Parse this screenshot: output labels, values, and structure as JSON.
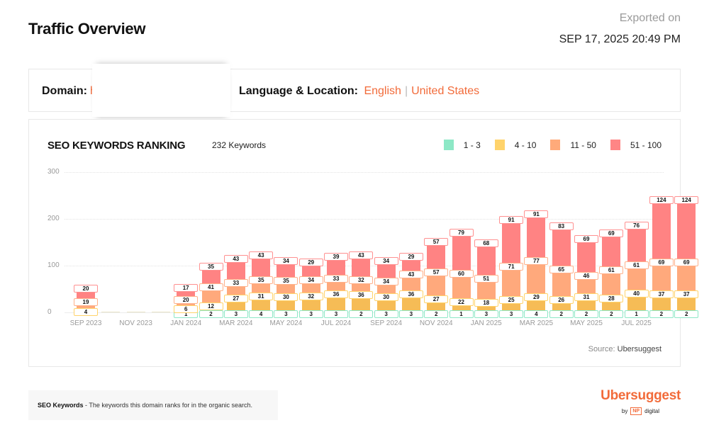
{
  "header": {
    "title": "Traffic Overview",
    "exported_label": "Exported on",
    "exported_date": "SEP 17, 2025 20:49 PM"
  },
  "info": {
    "domain_label": "Domain:",
    "domain_value": "h",
    "lang_label": "Language & Location:",
    "language": "English",
    "separator": "|",
    "location": "United States"
  },
  "chart_card": {
    "title": "SEO KEYWORDS RANKING",
    "count": "232 Keywords",
    "source_label": "Source:",
    "source_value": "Ubersuggest"
  },
  "legend": [
    {
      "label": "1 - 3",
      "color": "#8de8c6"
    },
    {
      "label": "4 - 10",
      "color": "#ffd36b"
    },
    {
      "label": "11 - 50",
      "color": "#ffaa7a"
    },
    {
      "label": "51 - 100",
      "color": "#ff8585"
    }
  ],
  "colors": {
    "r1_3": "#8de8c6",
    "r4_10": "#f6bc56",
    "r11_50": "#ffa97c",
    "r51_100": "#ff8383",
    "accent": "#f26b3a"
  },
  "chart_data": {
    "type": "bar",
    "stacked": true,
    "title": "SEO KEYWORDS RANKING",
    "subtitle": "232 Keywords",
    "xlabel": "",
    "ylabel": "",
    "ylim": [
      0,
      300
    ],
    "yticks": [
      0,
      100,
      200,
      300
    ],
    "grid": true,
    "legend_position": "top-right",
    "categories": [
      "SEP 2023",
      "OCT 2023",
      "NOV 2023",
      "DEC 2023",
      "JAN 2024",
      "FEB 2024",
      "MAR 2024",
      "APR 2024",
      "MAY 2024",
      "JUN 2024",
      "JUL 2024",
      "AUG 2024",
      "SEP 2024",
      "OCT 2024",
      "NOV 2024",
      "DEC 2024",
      "JAN 2025",
      "FEB 2025",
      "MAR 2025",
      "APR 2025",
      "MAY 2025",
      "JUN 2025",
      "JUL 2025",
      "AUG 2025",
      "SEP 2025"
    ],
    "xtick_labels": [
      "SEP 2023",
      "NOV 2023",
      "JAN 2024",
      "MAR 2024",
      "MAY 2024",
      "JUL 2024",
      "SEP 2024",
      "NOV 2024",
      "JAN 2025",
      "MAR 2025",
      "MAY 2025",
      "JUL 2025"
    ],
    "series": [
      {
        "name": "1 - 3",
        "values": [
          0,
          0,
          0,
          0,
          1,
          2,
          3,
          4,
          3,
          3,
          3,
          2,
          3,
          3,
          2,
          1,
          3,
          3,
          4,
          2,
          2,
          2,
          1,
          2,
          2
        ]
      },
      {
        "name": "4 - 10",
        "values": [
          4,
          0,
          0,
          0,
          6,
          12,
          27,
          31,
          30,
          32,
          36,
          36,
          30,
          36,
          27,
          22,
          18,
          25,
          29,
          26,
          31,
          28,
          40,
          37,
          37
        ]
      },
      {
        "name": "11 - 50",
        "values": [
          19,
          0,
          0,
          0,
          20,
          41,
          33,
          35,
          35,
          34,
          33,
          32,
          34,
          43,
          57,
          60,
          51,
          71,
          77,
          65,
          46,
          61,
          61,
          69,
          69
        ]
      },
      {
        "name": "51 - 100",
        "values": [
          20,
          0,
          0,
          0,
          17,
          35,
          43,
          43,
          34,
          29,
          39,
          43,
          34,
          29,
          57,
          79,
          68,
          91,
          91,
          83,
          69,
          69,
          76,
          124,
          124
        ]
      }
    ],
    "source": "Source: Ubersuggest"
  },
  "footer": {
    "note_term": "SEO Keywords",
    "note_text": " - The keywords this domain ranks for in the organic search.",
    "brand": "Ubersuggest",
    "by": "by",
    "np": "NP",
    "digital": "digital"
  }
}
